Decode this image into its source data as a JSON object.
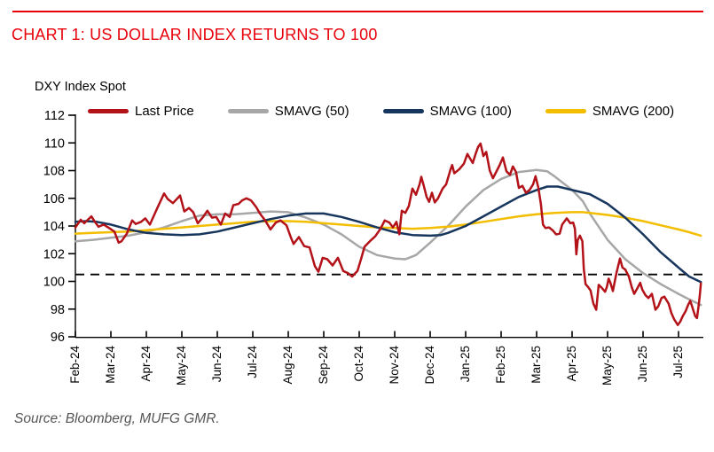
{
  "header": {
    "title": "CHART 1: US DOLLAR INDEX RETURNS TO 100"
  },
  "chart": {
    "source": "Source: Bloomberg, MUFG GMR.",
    "accent_red": "#e8000b",
    "axis_color": "#000000"
  },
  "chart_data": {
    "type": "line",
    "title": "DXY Index Spot",
    "xlabel": "",
    "ylabel": "",
    "ylim": [
      96,
      112
    ],
    "y_ticks": [
      96,
      98,
      100,
      102,
      104,
      106,
      108,
      110,
      112
    ],
    "x_tick_labels": [
      "Feb-24",
      "Mar-24",
      "Apr-24",
      "May-24",
      "Jun-24",
      "Jul-24",
      "Aug-24",
      "Sep-24",
      "Oct-24",
      "Nov-24",
      "Dec-24",
      "Jan-25",
      "Feb-25",
      "Mar-25",
      "Apr-25",
      "May-25",
      "Jun-25",
      "Jul-25"
    ],
    "x_unit": "months since Feb-2024",
    "grid": false,
    "legend_position": "top",
    "reference_line": {
      "value": 100.5,
      "style": "dashed",
      "color": "#000000"
    },
    "series": [
      {
        "name": "Last Price",
        "color": "#b21218",
        "points": [
          [
            0,
            103.9
          ],
          [
            0.15,
            104.45
          ],
          [
            0.25,
            104.2
          ],
          [
            0.45,
            104.7
          ],
          [
            0.55,
            104.3
          ],
          [
            0.65,
            103.95
          ],
          [
            0.8,
            104.1
          ],
          [
            0.95,
            103.85
          ],
          [
            1.1,
            103.6
          ],
          [
            1.22,
            102.8
          ],
          [
            1.3,
            102.9
          ],
          [
            1.45,
            103.45
          ],
          [
            1.6,
            104.4
          ],
          [
            1.7,
            104.15
          ],
          [
            1.85,
            104.3
          ],
          [
            1.97,
            104.55
          ],
          [
            2.1,
            104.1
          ],
          [
            2.3,
            105.25
          ],
          [
            2.5,
            106.35
          ],
          [
            2.6,
            105.95
          ],
          [
            2.75,
            105.65
          ],
          [
            2.95,
            106.2
          ],
          [
            3.07,
            105.05
          ],
          [
            3.2,
            105.3
          ],
          [
            3.32,
            105.0
          ],
          [
            3.45,
            104.2
          ],
          [
            3.6,
            104.65
          ],
          [
            3.72,
            105.1
          ],
          [
            3.85,
            104.6
          ],
          [
            3.97,
            104.65
          ],
          [
            4.1,
            104.1
          ],
          [
            4.22,
            104.9
          ],
          [
            4.35,
            104.65
          ],
          [
            4.45,
            105.5
          ],
          [
            4.6,
            105.6
          ],
          [
            4.7,
            105.85
          ],
          [
            4.82,
            106.0
          ],
          [
            4.95,
            105.85
          ],
          [
            5.1,
            105.35
          ],
          [
            5.2,
            104.9
          ],
          [
            5.35,
            104.4
          ],
          [
            5.5,
            103.75
          ],
          [
            5.65,
            104.25
          ],
          [
            5.78,
            104.4
          ],
          [
            5.95,
            104.05
          ],
          [
            6.07,
            103.2
          ],
          [
            6.15,
            102.7
          ],
          [
            6.3,
            103.2
          ],
          [
            6.45,
            102.55
          ],
          [
            6.6,
            102.45
          ],
          [
            6.75,
            101.1
          ],
          [
            6.85,
            100.7
          ],
          [
            6.97,
            101.7
          ],
          [
            7.1,
            101.6
          ],
          [
            7.25,
            101.15
          ],
          [
            7.4,
            101.7
          ],
          [
            7.55,
            100.75
          ],
          [
            7.68,
            100.6
          ],
          [
            7.8,
            100.35
          ],
          [
            7.95,
            100.75
          ],
          [
            8.05,
            101.6
          ],
          [
            8.15,
            102.5
          ],
          [
            8.3,
            102.9
          ],
          [
            8.45,
            103.25
          ],
          [
            8.6,
            103.8
          ],
          [
            8.72,
            104.4
          ],
          [
            8.85,
            104.25
          ],
          [
            8.95,
            103.9
          ],
          [
            9.05,
            104.3
          ],
          [
            9.13,
            103.4
          ],
          [
            9.2,
            105.1
          ],
          [
            9.3,
            104.95
          ],
          [
            9.4,
            105.45
          ],
          [
            9.5,
            106.7
          ],
          [
            9.6,
            106.25
          ],
          [
            9.7,
            107.0
          ],
          [
            9.75,
            107.55
          ],
          [
            9.82,
            106.9
          ],
          [
            9.9,
            106.1
          ],
          [
            9.97,
            105.75
          ],
          [
            10.05,
            106.4
          ],
          [
            10.13,
            105.7
          ],
          [
            10.22,
            106.0
          ],
          [
            10.35,
            106.7
          ],
          [
            10.45,
            107.0
          ],
          [
            10.57,
            108.05
          ],
          [
            10.62,
            108.4
          ],
          [
            10.68,
            107.8
          ],
          [
            10.82,
            108.1
          ],
          [
            10.95,
            108.5
          ],
          [
            11.05,
            109.2
          ],
          [
            11.13,
            108.85
          ],
          [
            11.2,
            108.55
          ],
          [
            11.28,
            109.2
          ],
          [
            11.35,
            109.7
          ],
          [
            11.42,
            109.95
          ],
          [
            11.5,
            109.05
          ],
          [
            11.58,
            109.35
          ],
          [
            11.68,
            108.0
          ],
          [
            11.77,
            107.45
          ],
          [
            11.85,
            107.85
          ],
          [
            11.95,
            108.35
          ],
          [
            12.05,
            108.95
          ],
          [
            12.15,
            107.95
          ],
          [
            12.25,
            107.7
          ],
          [
            12.33,
            108.3
          ],
          [
            12.42,
            107.9
          ],
          [
            12.5,
            106.75
          ],
          [
            12.6,
            106.9
          ],
          [
            12.7,
            106.4
          ],
          [
            12.8,
            106.6
          ],
          [
            12.9,
            107.0
          ],
          [
            12.97,
            107.6
          ],
          [
            13.05,
            106.75
          ],
          [
            13.12,
            105.6
          ],
          [
            13.18,
            104.1
          ],
          [
            13.25,
            103.85
          ],
          [
            13.35,
            103.9
          ],
          [
            13.45,
            103.7
          ],
          [
            13.55,
            103.4
          ],
          [
            13.65,
            103.45
          ],
          [
            13.72,
            104.1
          ],
          [
            13.85,
            104.55
          ],
          [
            13.95,
            104.2
          ],
          [
            14.03,
            104.25
          ],
          [
            14.08,
            103.8
          ],
          [
            14.12,
            101.95
          ],
          [
            14.16,
            103.0
          ],
          [
            14.22,
            103.3
          ],
          [
            14.29,
            102.9
          ],
          [
            14.33,
            100.9
          ],
          [
            14.38,
            99.8
          ],
          [
            14.45,
            99.6
          ],
          [
            14.52,
            99.35
          ],
          [
            14.6,
            98.4
          ],
          [
            14.68,
            97.95
          ],
          [
            14.75,
            99.75
          ],
          [
            14.83,
            99.55
          ],
          [
            14.93,
            99.25
          ],
          [
            14.98,
            99.6
          ],
          [
            15.03,
            100.2
          ],
          [
            15.08,
            99.9
          ],
          [
            15.15,
            99.3
          ],
          [
            15.25,
            100.6
          ],
          [
            15.35,
            101.65
          ],
          [
            15.42,
            101.0
          ],
          [
            15.5,
            100.85
          ],
          [
            15.6,
            100.35
          ],
          [
            15.68,
            99.6
          ],
          [
            15.75,
            99.1
          ],
          [
            15.85,
            99.55
          ],
          [
            15.92,
            99.9
          ],
          [
            15.98,
            99.4
          ],
          [
            16.07,
            99.0
          ],
          [
            16.15,
            98.8
          ],
          [
            16.25,
            99.1
          ],
          [
            16.35,
            97.95
          ],
          [
            16.43,
            98.2
          ],
          [
            16.52,
            98.8
          ],
          [
            16.6,
            98.9
          ],
          [
            16.72,
            98.4
          ],
          [
            16.8,
            97.7
          ],
          [
            16.88,
            97.25
          ],
          [
            16.98,
            96.85
          ],
          [
            17.05,
            97.1
          ],
          [
            17.12,
            97.5
          ],
          [
            17.2,
            97.85
          ],
          [
            17.27,
            98.3
          ],
          [
            17.33,
            98.6
          ],
          [
            17.4,
            98.05
          ],
          [
            17.47,
            97.5
          ],
          [
            17.52,
            97.35
          ],
          [
            17.57,
            98.3
          ],
          [
            17.6,
            99.0
          ],
          [
            17.63,
            99.85
          ]
        ]
      },
      {
        "name": "SMAVG (50)",
        "color": "#a7a7a7",
        "points": [
          [
            0,
            102.9
          ],
          [
            0.5,
            103.0
          ],
          [
            1,
            103.15
          ],
          [
            1.5,
            103.3
          ],
          [
            2,
            103.55
          ],
          [
            2.5,
            103.9
          ],
          [
            3,
            104.35
          ],
          [
            3.5,
            104.75
          ],
          [
            4,
            104.85
          ],
          [
            4.5,
            104.85
          ],
          [
            5,
            104.95
          ],
          [
            5.5,
            105.05
          ],
          [
            6,
            105.0
          ],
          [
            6.5,
            104.6
          ],
          [
            7,
            104.1
          ],
          [
            7.5,
            103.4
          ],
          [
            8,
            102.5
          ],
          [
            8.5,
            101.9
          ],
          [
            9,
            101.65
          ],
          [
            9.3,
            101.6
          ],
          [
            9.6,
            101.9
          ],
          [
            10,
            102.8
          ],
          [
            10.5,
            104.0
          ],
          [
            11,
            105.4
          ],
          [
            11.5,
            106.6
          ],
          [
            12,
            107.4
          ],
          [
            12.5,
            107.9
          ],
          [
            13,
            108.05
          ],
          [
            13.3,
            107.95
          ],
          [
            13.5,
            107.6
          ],
          [
            14,
            106.6
          ],
          [
            14.3,
            105.8
          ],
          [
            14.5,
            104.9
          ],
          [
            15,
            103.0
          ],
          [
            15.5,
            101.6
          ],
          [
            16,
            100.6
          ],
          [
            16.5,
            99.8
          ],
          [
            17,
            99.1
          ],
          [
            17.3,
            98.7
          ],
          [
            17.63,
            98.3
          ]
        ]
      },
      {
        "name": "SMAVG (100)",
        "color": "#17365d",
        "points": [
          [
            0,
            104.3
          ],
          [
            0.3,
            104.35
          ],
          [
            0.6,
            104.3
          ],
          [
            1,
            104.1
          ],
          [
            1.5,
            103.75
          ],
          [
            2,
            103.5
          ],
          [
            2.5,
            103.4
          ],
          [
            3,
            103.35
          ],
          [
            3.5,
            103.4
          ],
          [
            4,
            103.6
          ],
          [
            4.5,
            103.9
          ],
          [
            5,
            104.2
          ],
          [
            5.5,
            104.5
          ],
          [
            6,
            104.75
          ],
          [
            6.5,
            104.9
          ],
          [
            7,
            104.9
          ],
          [
            7.5,
            104.65
          ],
          [
            8,
            104.3
          ],
          [
            8.5,
            103.9
          ],
          [
            9,
            103.55
          ],
          [
            9.5,
            103.35
          ],
          [
            10,
            103.3
          ],
          [
            10.3,
            103.35
          ],
          [
            10.5,
            103.5
          ],
          [
            11,
            104.0
          ],
          [
            11.5,
            104.7
          ],
          [
            12,
            105.4
          ],
          [
            12.5,
            106.1
          ],
          [
            13,
            106.6
          ],
          [
            13.3,
            106.85
          ],
          [
            13.6,
            106.85
          ],
          [
            14,
            106.6
          ],
          [
            14.5,
            106.3
          ],
          [
            15,
            105.6
          ],
          [
            15.5,
            104.6
          ],
          [
            16,
            103.4
          ],
          [
            16.5,
            102.1
          ],
          [
            17,
            101.0
          ],
          [
            17.3,
            100.35
          ],
          [
            17.63,
            99.95
          ]
        ]
      },
      {
        "name": "SMAVG (200)",
        "color": "#f3bd00",
        "points": [
          [
            0,
            103.45
          ],
          [
            0.5,
            103.5
          ],
          [
            1,
            103.55
          ],
          [
            1.5,
            103.6
          ],
          [
            2,
            103.7
          ],
          [
            2.5,
            103.8
          ],
          [
            3,
            103.9
          ],
          [
            3.5,
            104.0
          ],
          [
            4,
            104.1
          ],
          [
            4.5,
            104.2
          ],
          [
            5,
            104.3
          ],
          [
            5.5,
            104.35
          ],
          [
            6,
            104.35
          ],
          [
            6.5,
            104.3
          ],
          [
            7,
            104.2
          ],
          [
            7.5,
            104.1
          ],
          [
            8,
            104.0
          ],
          [
            8.5,
            103.9
          ],
          [
            9,
            103.85
          ],
          [
            9.5,
            103.8
          ],
          [
            10,
            103.85
          ],
          [
            10.5,
            103.95
          ],
          [
            11,
            104.1
          ],
          [
            11.5,
            104.3
          ],
          [
            12,
            104.5
          ],
          [
            12.5,
            104.7
          ],
          [
            13,
            104.85
          ],
          [
            13.5,
            104.95
          ],
          [
            14,
            105.0
          ],
          [
            14.3,
            105.0
          ],
          [
            14.5,
            104.95
          ],
          [
            15,
            104.8
          ],
          [
            15.5,
            104.6
          ],
          [
            16,
            104.35
          ],
          [
            16.5,
            104.05
          ],
          [
            17,
            103.75
          ],
          [
            17.3,
            103.55
          ],
          [
            17.63,
            103.3
          ]
        ]
      }
    ]
  }
}
